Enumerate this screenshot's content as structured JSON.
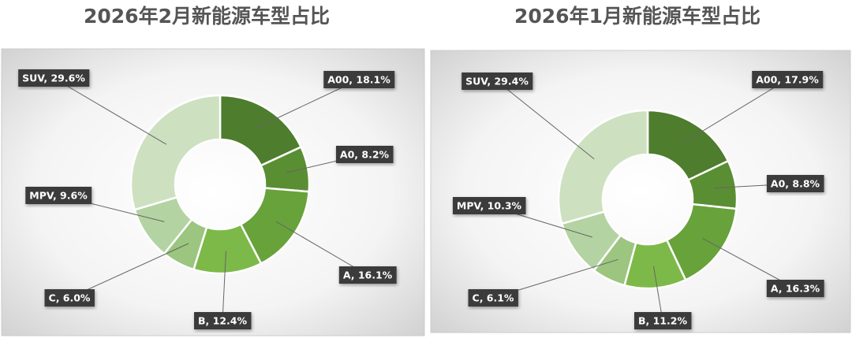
{
  "chart_data": [
    {
      "type": "pie",
      "title": "2026年2月新能源车型占比",
      "values": [
        18.1,
        8.2,
        16.1,
        12.4,
        6.0,
        9.6,
        29.6
      ],
      "value_labels": [
        "A00, 18.1%",
        "A0, 8.2%",
        "A, 16.1%",
        "B, 12.4%",
        "C, 6.0%",
        "MPV, 9.6%",
        "SUV, 29.6%"
      ],
      "colors": [
        "#4e7d2d",
        "#5a8e33",
        "#68a23b",
        "#7db948",
        "#9cc580",
        "#b4d3a2",
        "#cde1c1"
      ]
    },
    {
      "type": "pie",
      "title": "2026年1月新能源车型占比",
      "values": [
        17.9,
        8.8,
        16.3,
        11.2,
        6.1,
        10.3,
        29.4
      ],
      "value_labels": [
        "A00, 17.9%",
        "A0, 8.8%",
        "A, 16.3%",
        "B, 11.2%",
        "C, 6.1%",
        "MPV, 10.3%",
        "SUV, 29.4%"
      ],
      "colors": [
        "#4e7d2d",
        "#5a8e33",
        "#68a23b",
        "#7db948",
        "#9cc580",
        "#b4d3a2",
        "#cde1c1"
      ]
    }
  ]
}
